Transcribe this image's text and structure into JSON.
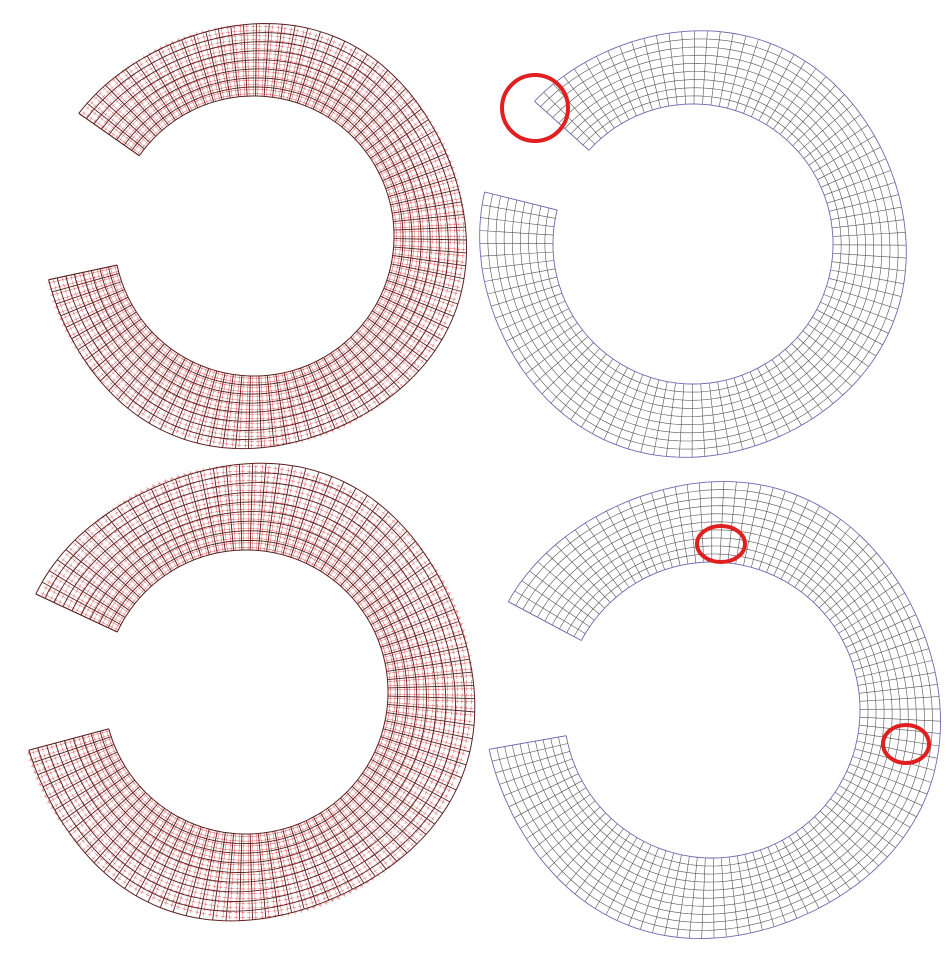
{
  "figure": {
    "panels": [
      {
        "id": "top-left",
        "style": "field-overlay",
        "gap": "upper-left"
      },
      {
        "id": "top-right",
        "style": "quad-mesh",
        "gap": "upper-left",
        "highlights": 1
      },
      {
        "id": "bottom-left",
        "style": "field-overlay",
        "gap": "upper-left"
      },
      {
        "id": "bottom-right",
        "style": "quad-mesh",
        "gap": "upper-left",
        "highlights": 2
      }
    ],
    "colors": {
      "mesh_line": "#555555",
      "boundary": "#6b6bb0",
      "field_line": "#e05050",
      "dark_line": "#5a2020",
      "highlight": "#e02020"
    }
  }
}
